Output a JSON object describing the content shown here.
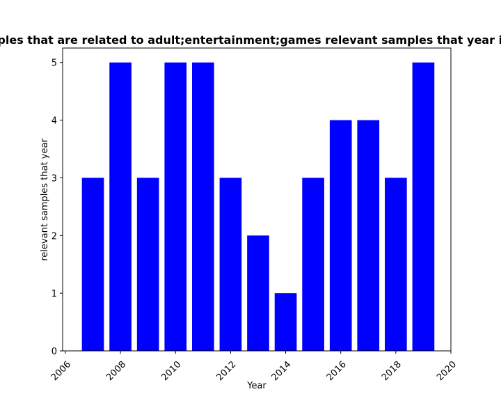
{
  "chart_data": {
    "type": "bar",
    "title": "Number of samples that are related to adult;entertainment;games relevant samples that year in privacy policies",
    "xlabel": "Year",
    "ylabel": "relevant samples that year",
    "x": [
      2007,
      2008,
      2009,
      2010,
      2011,
      2012,
      2013,
      2014,
      2015,
      2016,
      2017,
      2018,
      2019
    ],
    "values": [
      3,
      5,
      3,
      5,
      5,
      3,
      2,
      1,
      3,
      4,
      4,
      3,
      5
    ],
    "xlim": [
      2005.9,
      2020.0
    ],
    "ylim": [
      0,
      5.25
    ],
    "xticks": [
      "2006",
      "2008",
      "2010",
      "2012",
      "2014",
      "2016",
      "2018",
      "2020"
    ],
    "yticks": [
      "0",
      "1",
      "2",
      "3",
      "4",
      "5"
    ],
    "bar_color": "#0000ff",
    "grid": false,
    "legend": "none"
  }
}
